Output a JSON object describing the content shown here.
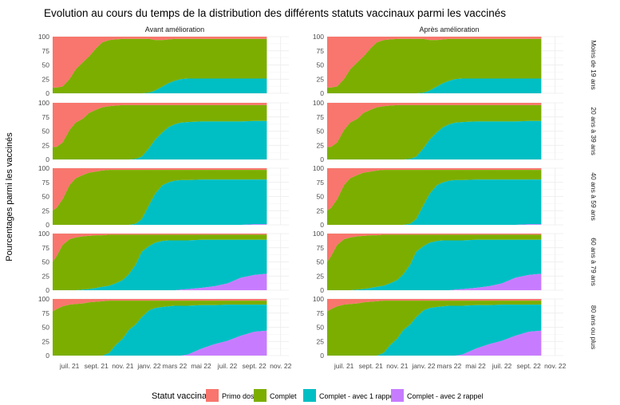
{
  "chart_data": {
    "type": "area",
    "title": "Evolution au cours du temps de la distribution des différents statuts vaccinaux parmi les vaccinés",
    "ylabel": "Pourcentages parmi les vaccinés",
    "xlabel": "",
    "columns": [
      "Avant amélioration",
      "Après amélioration"
    ],
    "rows": [
      "Moins de 19 ans",
      "20 ans à 39 ans",
      "40 ans à 59 ans",
      "60 ans à 79 ans",
      "80 ans ou plus"
    ],
    "ylim": [
      0,
      100
    ],
    "y_ticks": [
      "0",
      "25",
      "50",
      "75",
      "100"
    ],
    "x_ticks": [
      "juil. 21",
      "sept. 21",
      "nov. 21",
      "janv. 22",
      "mars 22",
      "mai 22",
      "juil. 22",
      "sept. 22",
      "nov. 22"
    ],
    "grid": true,
    "legend": {
      "title": "Statut vaccinal",
      "position": "bottom",
      "items": [
        "Primo dose",
        "Complet",
        "Complet - avec 1 rappel",
        "Complet - avec 2 rappel"
      ]
    },
    "series_colors": [
      "#F8766D",
      "#7CAE00",
      "#00BFC4",
      "#C77CFF"
    ],
    "x": [
      "2021-05-23",
      "2021-06-01",
      "2021-06-15",
      "2021-07-01",
      "2021-07-15",
      "2021-08-01",
      "2021-08-15",
      "2021-09-01",
      "2021-09-15",
      "2021-10-01",
      "2021-10-15",
      "2021-11-01",
      "2021-11-15",
      "2021-12-01",
      "2021-12-15",
      "2022-01-01",
      "2022-01-15",
      "2022-02-01",
      "2022-02-15",
      "2022-03-01",
      "2022-03-15",
      "2022-04-01",
      "2022-05-01",
      "2022-06-01",
      "2022-07-01",
      "2022-08-01",
      "2022-09-01",
      "2022-09-30"
    ],
    "panels": [
      {
        "row": "Moins de 19 ans",
        "complet_plus": [
          10,
          10,
          12,
          25,
          42,
          55,
          65,
          80,
          90,
          94,
          95,
          96,
          96,
          96,
          96,
          96,
          94,
          94,
          95,
          96,
          96,
          96,
          96,
          96,
          96,
          96,
          96,
          96
        ],
        "rappel1_plus": [
          0,
          0,
          0,
          0,
          0,
          0,
          0,
          0,
          0,
          0,
          0,
          0,
          0,
          0,
          0,
          1,
          5,
          12,
          18,
          22,
          25,
          26,
          26,
          26,
          26,
          26,
          26,
          26
        ],
        "rappel2": [
          0,
          0,
          0,
          0,
          0,
          0,
          0,
          0,
          0,
          0,
          0,
          0,
          0,
          0,
          0,
          0,
          0,
          0,
          0,
          0,
          0,
          0,
          0,
          0,
          0,
          0,
          0,
          0
        ]
      },
      {
        "row": "20 ans à 39 ans",
        "complet_plus": [
          22,
          22,
          30,
          52,
          65,
          72,
          82,
          88,
          92,
          94,
          95,
          96,
          96,
          96,
          96,
          96,
          96,
          96,
          96,
          96,
          96,
          96,
          96,
          96,
          96,
          96,
          96,
          96
        ],
        "rappel1_plus": [
          0,
          0,
          0,
          0,
          0,
          0,
          0,
          0,
          0,
          0,
          0,
          0,
          0,
          1,
          5,
          20,
          35,
          48,
          57,
          62,
          65,
          66,
          67,
          67,
          67,
          67,
          68,
          68
        ],
        "rappel2": [
          0,
          0,
          0,
          0,
          0,
          0,
          0,
          0,
          0,
          0,
          0,
          0,
          0,
          0,
          0,
          0,
          0,
          0,
          0,
          0,
          0,
          0,
          0,
          0,
          0,
          0,
          0,
          0
        ]
      },
      {
        "row": "40 ans à 59 ans",
        "complet_plus": [
          25,
          30,
          45,
          70,
          82,
          88,
          92,
          94,
          96,
          97,
          97,
          97,
          97,
          97,
          97,
          97,
          97,
          97,
          97,
          97,
          97,
          97,
          97,
          97,
          97,
          97,
          97,
          97
        ],
        "rappel1_plus": [
          0,
          0,
          0,
          0,
          0,
          0,
          0,
          0,
          0,
          0,
          0,
          0,
          0,
          2,
          10,
          35,
          55,
          70,
          75,
          78,
          79,
          79,
          80,
          80,
          80,
          80,
          80,
          80
        ],
        "rappel2": [
          0,
          0,
          0,
          0,
          0,
          0,
          0,
          0,
          0,
          0,
          0,
          0,
          0,
          0,
          0,
          0,
          0,
          0,
          0,
          0,
          0,
          0,
          0,
          0,
          0,
          0,
          1,
          1
        ]
      },
      {
        "row": "60 ans à 79 ans",
        "complet_plus": [
          50,
          60,
          80,
          90,
          93,
          95,
          96,
          97,
          97,
          98,
          98,
          98,
          98,
          98,
          98,
          98,
          98,
          98,
          98,
          98,
          98,
          98,
          98,
          98,
          98,
          98,
          98,
          98
        ],
        "rappel1_plus": [
          0,
          0,
          0,
          0,
          0,
          1,
          2,
          4,
          6,
          8,
          12,
          18,
          28,
          45,
          68,
          78,
          84,
          87,
          88,
          88,
          88,
          88,
          89,
          89,
          89,
          89,
          89,
          89
        ],
        "rappel2": [
          0,
          0,
          0,
          0,
          0,
          0,
          0,
          0,
          0,
          0,
          0,
          0,
          0,
          0,
          0,
          0,
          0,
          0,
          0,
          0,
          1,
          2,
          4,
          7,
          12,
          22,
          27,
          29
        ]
      },
      {
        "row": "80 ans ou plus",
        "complet_plus": [
          78,
          82,
          87,
          90,
          91,
          92,
          94,
          95,
          96,
          97,
          97,
          97,
          97,
          97,
          97,
          97,
          97,
          97,
          97,
          97,
          97,
          97,
          97,
          97,
          97,
          97,
          97,
          97
        ],
        "rappel1_plus": [
          0,
          0,
          0,
          0,
          0,
          0,
          0,
          0,
          0,
          5,
          18,
          30,
          45,
          55,
          68,
          80,
          84,
          86,
          87,
          88,
          88,
          88,
          89,
          89,
          90,
          90,
          90,
          90
        ],
        "rappel2": [
          0,
          0,
          0,
          0,
          0,
          0,
          0,
          0,
          0,
          0,
          0,
          0,
          0,
          0,
          0,
          0,
          0,
          0,
          0,
          0,
          0,
          2,
          12,
          20,
          26,
          35,
          42,
          44
        ]
      }
    ]
  }
}
